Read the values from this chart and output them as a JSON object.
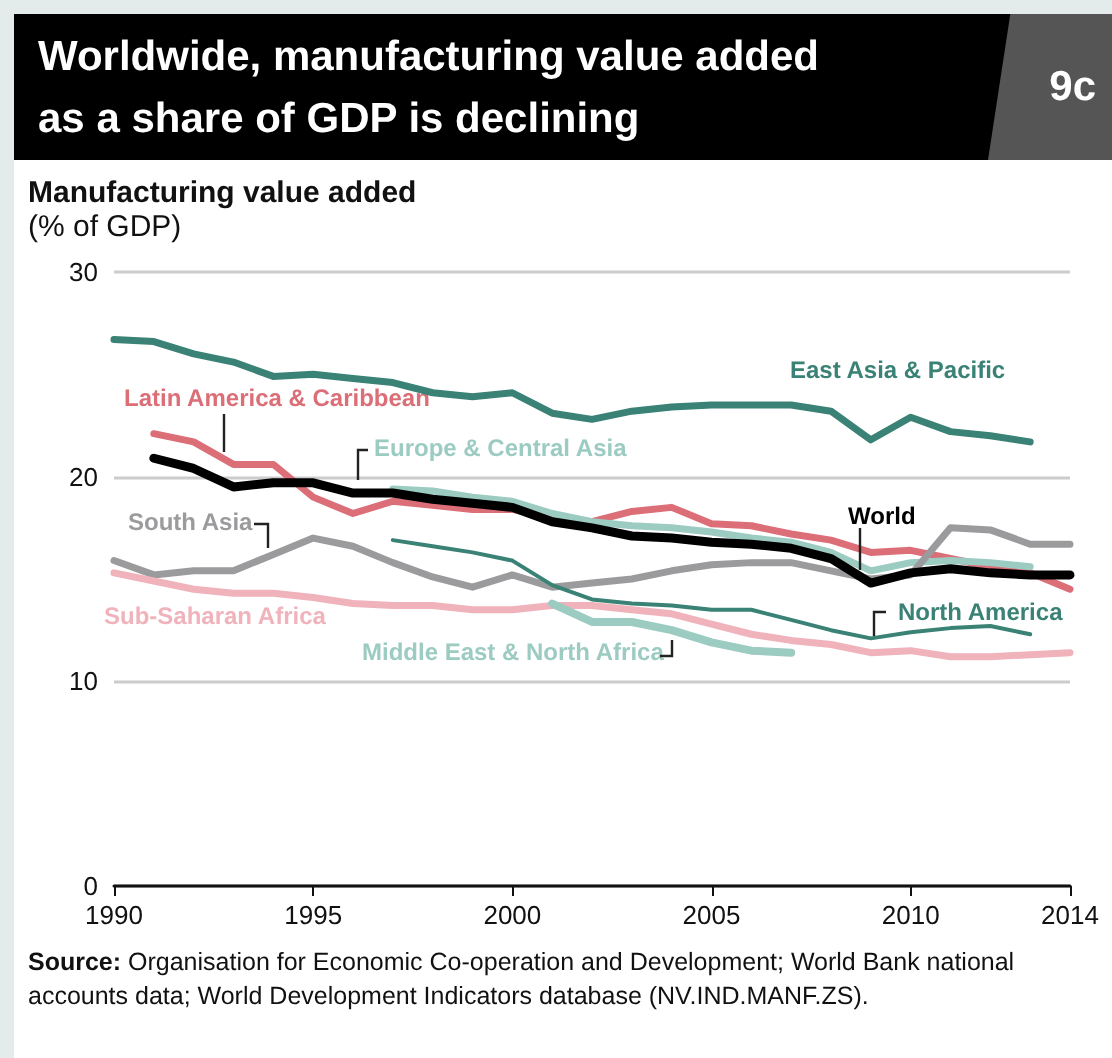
{
  "chart_data": {
    "type": "line",
    "title": "Worldwide, manufacturing value added as a share of GDP is declining",
    "ylabel": "Manufacturing value added\n(% of GDP)",
    "annotations": [
      "9c",
      "Source: Organisation for Economic Co-operation and Development; World Bank national accounts data; World Development Indicators database (NV.IND.MANF.ZS)."
    ],
    "xlim": [
      1990,
      2014
    ],
    "xticks": [
      1990,
      1995,
      2000,
      2005,
      2010,
      2014
    ],
    "ylim": [
      0,
      30
    ],
    "yticks": [
      0,
      10,
      20,
      30
    ],
    "grid": "y",
    "legend": false,
    "marker": "none",
    "line_style": "solid",
    "series": [
      {
        "name": "East Asia & Pacific",
        "color": "#3a8275",
        "x": [
          1990,
          1991,
          1992,
          1993,
          1994,
          1995,
          1996,
          1997,
          1998,
          1999,
          2000,
          2001,
          2002,
          2003,
          2004,
          2005,
          2006,
          2007,
          2008,
          2009,
          2010,
          2011,
          2012,
          2013
        ],
        "values": [
          26.7,
          26.6,
          26.0,
          25.6,
          24.9,
          25.0,
          24.8,
          24.6,
          24.1,
          23.9,
          24.1,
          23.1,
          22.8,
          23.2,
          23.4,
          23.5,
          23.5,
          23.5,
          23.2,
          21.8,
          22.9,
          22.2,
          22.0,
          21.7
        ]
      },
      {
        "name": "Latin America & Caribbean",
        "color": "#dc6e78",
        "x": [
          1991,
          1992,
          1993,
          1994,
          1995,
          1996,
          1997,
          1998,
          1999,
          2000,
          2001,
          2002,
          2003,
          2004,
          2005,
          2006,
          2007,
          2008,
          2009,
          2010,
          2011,
          2012,
          2013,
          2014
        ],
        "values": [
          22.1,
          21.7,
          20.6,
          20.6,
          19.0,
          18.2,
          18.8,
          18.6,
          18.4,
          18.4,
          18.0,
          17.8,
          18.3,
          18.5,
          17.7,
          17.6,
          17.2,
          16.9,
          16.3,
          16.4,
          16.0,
          15.6,
          15.3,
          14.5
        ]
      },
      {
        "name": "Europe & Central Asia",
        "color": "#9ccbc2",
        "x": [
          1997,
          1998,
          1999,
          2000,
          2001,
          2002,
          2003,
          2004,
          2005,
          2006,
          2007,
          2008,
          2009,
          2010,
          2011,
          2012,
          2013
        ],
        "values": [
          19.4,
          19.3,
          19.0,
          18.8,
          18.2,
          17.8,
          17.6,
          17.5,
          17.3,
          17.0,
          16.8,
          16.3,
          15.4,
          15.8,
          15.9,
          15.8,
          15.6
        ]
      },
      {
        "name": "World",
        "color": "#000000",
        "x": [
          1991,
          1992,
          1993,
          1994,
          1995,
          1996,
          1997,
          1998,
          1999,
          2000,
          2001,
          2002,
          2003,
          2004,
          2005,
          2006,
          2007,
          2008,
          2009,
          2010,
          2011,
          2012,
          2013,
          2014
        ],
        "values": [
          20.9,
          20.4,
          19.5,
          19.7,
          19.7,
          19.2,
          19.2,
          18.9,
          18.7,
          18.5,
          17.8,
          17.5,
          17.1,
          17.0,
          16.8,
          16.7,
          16.5,
          16.0,
          14.8,
          15.3,
          15.5,
          15.3,
          15.2,
          15.2
        ]
      },
      {
        "name": "South Asia",
        "color": "#9b9b9d",
        "x": [
          1990,
          1991,
          1992,
          1993,
          1994,
          1995,
          1996,
          1997,
          1998,
          1999,
          2000,
          2001,
          2002,
          2003,
          2004,
          2005,
          2006,
          2007,
          2008,
          2009,
          2010,
          2011,
          2012,
          2013,
          2014
        ],
        "values": [
          15.9,
          15.2,
          15.4,
          15.4,
          16.2,
          17.0,
          16.6,
          15.8,
          15.1,
          14.6,
          15.2,
          14.6,
          14.8,
          15.0,
          15.4,
          15.7,
          15.8,
          15.8,
          15.4,
          15.0,
          15.2,
          17.5,
          17.4,
          16.7,
          16.7
        ]
      },
      {
        "name": "Sub-Saharan Africa",
        "color": "#f0b3bb",
        "x": [
          1990,
          1991,
          1992,
          1993,
          1994,
          1995,
          1996,
          1997,
          1998,
          1999,
          2000,
          2001,
          2002,
          2003,
          2004,
          2005,
          2006,
          2007,
          2008,
          2009,
          2010,
          2011,
          2012,
          2013,
          2014
        ],
        "values": [
          15.3,
          14.9,
          14.5,
          14.3,
          14.3,
          14.1,
          13.8,
          13.7,
          13.7,
          13.5,
          13.5,
          13.7,
          13.7,
          13.5,
          13.3,
          12.8,
          12.3,
          12.0,
          11.8,
          11.4,
          11.5,
          11.2,
          11.2,
          11.3,
          11.4
        ]
      },
      {
        "name": "North America",
        "color": "#3a8275",
        "x": [
          1997,
          1998,
          1999,
          2000,
          2001,
          2002,
          2003,
          2004,
          2005,
          2006,
          2007,
          2008,
          2009,
          2010,
          2011,
          2012,
          2013
        ],
        "values": [
          16.9,
          16.6,
          16.3,
          15.9,
          14.7,
          14.0,
          13.8,
          13.7,
          13.5,
          13.5,
          13.0,
          12.5,
          12.1,
          12.4,
          12.6,
          12.7,
          12.3
        ]
      },
      {
        "name": "Middle East & North Africa",
        "color": "#9ccbc2",
        "x": [
          2001,
          2002,
          2003,
          2004,
          2005,
          2006,
          2007
        ],
        "values": [
          13.8,
          12.9,
          12.9,
          12.5,
          11.9,
          11.5,
          11.4
        ]
      }
    ]
  }
}
